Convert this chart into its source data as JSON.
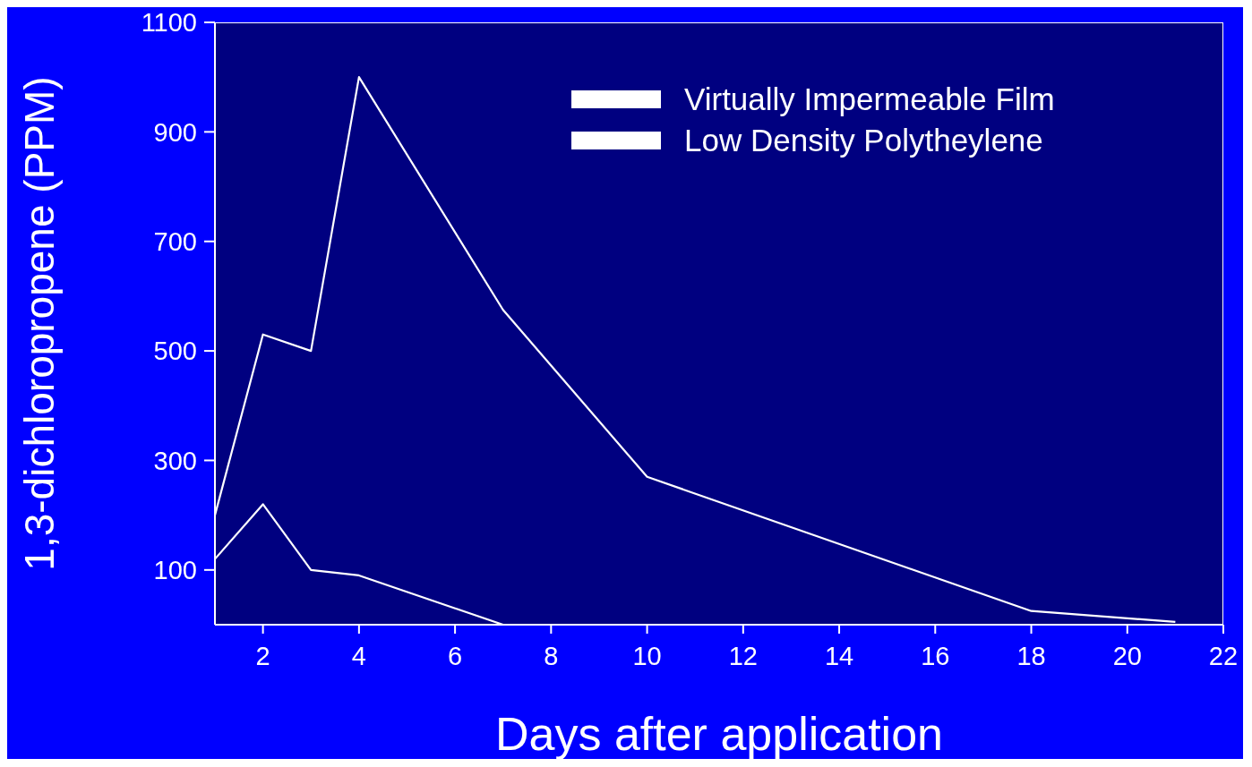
{
  "chart_data": {
    "type": "line",
    "xlabel": "Days after application",
    "ylabel": "1,3-dichloropropene (PPM)",
    "series": [
      {
        "name": "Virtually Impermeable Film",
        "color": "#ffffff",
        "x": [
          1,
          2,
          3,
          4,
          7,
          10,
          18,
          21
        ],
        "values": [
          200,
          530,
          500,
          1000,
          575,
          270,
          25,
          5
        ]
      },
      {
        "name": "Low Density Polytheylene",
        "color": "#ffffff",
        "x": [
          1,
          2,
          3,
          4,
          7
        ],
        "values": [
          120,
          220,
          100,
          90,
          0
        ]
      }
    ],
    "xlim": [
      1,
      22
    ],
    "xticks": [
      2,
      4,
      6,
      8,
      10,
      12,
      14,
      16,
      18,
      20,
      22
    ],
    "ylim": [
      0,
      1100
    ],
    "yticks": [
      100,
      300,
      500,
      700,
      900,
      1100
    ],
    "grid": false,
    "legend": "top right",
    "marker": "none",
    "line_style": "solid"
  }
}
